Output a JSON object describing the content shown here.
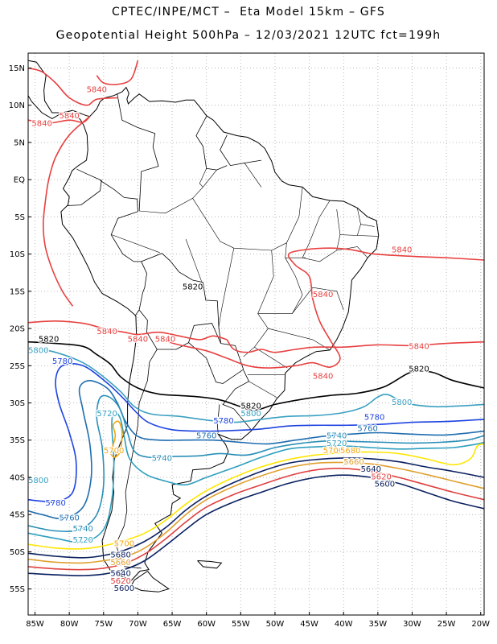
{
  "header": {
    "line1": "CPTEC/INPE/MCT –  Eta Model 15km – GFS",
    "line2": "Geopotential Height 500hPa – 12/03/2021 12UTC fct=199h"
  },
  "axes": {
    "lat_labels": [
      "15N",
      "10N",
      "5N",
      "EQ",
      "5S",
      "10S",
      "15S",
      "20S",
      "25S",
      "30S",
      "35S",
      "40S",
      "45S",
      "50S",
      "55S"
    ],
    "lat_values": [
      15,
      10,
      5,
      0,
      -5,
      -10,
      -15,
      -20,
      -25,
      -30,
      -35,
      -40,
      -45,
      -50,
      -55
    ],
    "lon_labels": [
      "85W",
      "80W",
      "75W",
      "70W",
      "65W",
      "60W",
      "55W",
      "50W",
      "45W",
      "40W",
      "35W",
      "30W",
      "25W",
      "20W"
    ],
    "lon_values": [
      -85,
      -80,
      -75,
      -70,
      -65,
      -60,
      -55,
      -50,
      -45,
      -40,
      -35,
      -30,
      -25,
      -20
    ],
    "lon_range": [
      -86,
      -19.5
    ],
    "lat_range": [
      -58.5,
      17
    ]
  },
  "colors": {
    "5700": "#f5a60e",
    "5720": "#2f9fbf",
    "5740": "#2a8fb8",
    "5760": "#1f6db0",
    "5780": "#1d43e0",
    "5800": "#3aa0c2",
    "5820": "#000000",
    "5840": "#e84040",
    "yellow": "#ffe600",
    "orange": "#e0a030",
    "red": "#e04040",
    "navy": "#0a2060"
  },
  "contour_labels": [
    {
      "text": "5840",
      "lon": -76,
      "lat": 12,
      "c": "5840"
    },
    {
      "text": "5840",
      "lon": -80,
      "lat": 8.5,
      "c": "5840"
    },
    {
      "text": "5840",
      "lon": -84,
      "lat": 7.5,
      "c": "5840"
    },
    {
      "text": "5840",
      "lon": -43,
      "lat": -15.5,
      "c": "5840"
    },
    {
      "text": "5840",
      "lon": -31.5,
      "lat": -9.5,
      "c": "5840"
    },
    {
      "text": "5840",
      "lon": -74.5,
      "lat": -20.5,
      "c": "5840"
    },
    {
      "text": "5840",
      "lon": -66,
      "lat": -21.5,
      "c": "5840"
    },
    {
      "text": "5840",
      "lon": -70,
      "lat": -21.5,
      "c": "5840"
    },
    {
      "text": "5840",
      "lon": -29,
      "lat": -22.5,
      "c": "5840"
    },
    {
      "text": "5840",
      "lon": -43,
      "lat": -26.5,
      "c": "5840"
    },
    {
      "text": "5820",
      "lon": -62,
      "lat": -14.5,
      "c": "5820"
    },
    {
      "text": "5820",
      "lon": -83,
      "lat": -21.5,
      "c": "5820"
    },
    {
      "text": "5820",
      "lon": -29,
      "lat": -25.5,
      "c": "5820"
    },
    {
      "text": "5820",
      "lon": -53.5,
      "lat": -30.5,
      "c": "5820"
    },
    {
      "text": "5800",
      "lon": -84.5,
      "lat": -23,
      "c": "5800"
    },
    {
      "text": "5800",
      "lon": -31.5,
      "lat": -30,
      "c": "5800"
    },
    {
      "text": "5800",
      "lon": -53.5,
      "lat": -31.5,
      "c": "5800"
    },
    {
      "text": "5800",
      "lon": -84.5,
      "lat": -40.5,
      "c": "5800"
    },
    {
      "text": "5780",
      "lon": -81,
      "lat": -24.5,
      "c": "5780"
    },
    {
      "text": "5780",
      "lon": -57.5,
      "lat": -32.5,
      "c": "5780"
    },
    {
      "text": "5780",
      "lon": -35.5,
      "lat": -32,
      "c": "5780"
    },
    {
      "text": "5780",
      "lon": -82,
      "lat": -43.5,
      "c": "5780"
    },
    {
      "text": "5760",
      "lon": -60,
      "lat": -34.5,
      "c": "5760"
    },
    {
      "text": "5760",
      "lon": -36.5,
      "lat": -33.5,
      "c": "5760"
    },
    {
      "text": "5760",
      "lon": -80,
      "lat": -45.5,
      "c": "5760"
    },
    {
      "text": "5740",
      "lon": -66.5,
      "lat": -37.5,
      "c": "5740"
    },
    {
      "text": "5740",
      "lon": -41,
      "lat": -34.5,
      "c": "5740"
    },
    {
      "text": "5740",
      "lon": -78,
      "lat": -47,
      "c": "5740"
    },
    {
      "text": "5720",
      "lon": -74.5,
      "lat": -31.5,
      "c": "5720"
    },
    {
      "text": "5720",
      "lon": -41,
      "lat": -35.5,
      "c": "5720"
    },
    {
      "text": "5720",
      "lon": -78,
      "lat": -48.5,
      "c": "5720"
    },
    {
      "text": "5700",
      "lon": -73.5,
      "lat": -36.5,
      "c": "5700"
    },
    {
      "text": "5700",
      "lon": -41.5,
      "lat": -36.5,
      "c": "5700"
    },
    {
      "text": "5700",
      "lon": -72,
      "lat": -49,
      "c": "5700"
    },
    {
      "text": "5680",
      "lon": -39,
      "lat": -36.5,
      "c": "5700"
    },
    {
      "text": "5680",
      "lon": -72.5,
      "lat": -50.5,
      "c": "navy"
    },
    {
      "text": "5660",
      "lon": -38.5,
      "lat": -38,
      "c": "orange"
    },
    {
      "text": "5660",
      "lon": -72.5,
      "lat": -51.5,
      "c": "orange"
    },
    {
      "text": "5640",
      "lon": -36,
      "lat": -39,
      "c": "navy"
    },
    {
      "text": "5640",
      "lon": -72.5,
      "lat": -53,
      "c": "navy"
    },
    {
      "text": "5620",
      "lon": -34.5,
      "lat": -40,
      "c": "red"
    },
    {
      "text": "5620",
      "lon": -72.5,
      "lat": -54,
      "c": "red"
    },
    {
      "text": "5600",
      "lon": -34,
      "lat": -41,
      "c": "navy"
    },
    {
      "text": "5600",
      "lon": -72,
      "lat": -55,
      "c": "navy"
    }
  ]
}
